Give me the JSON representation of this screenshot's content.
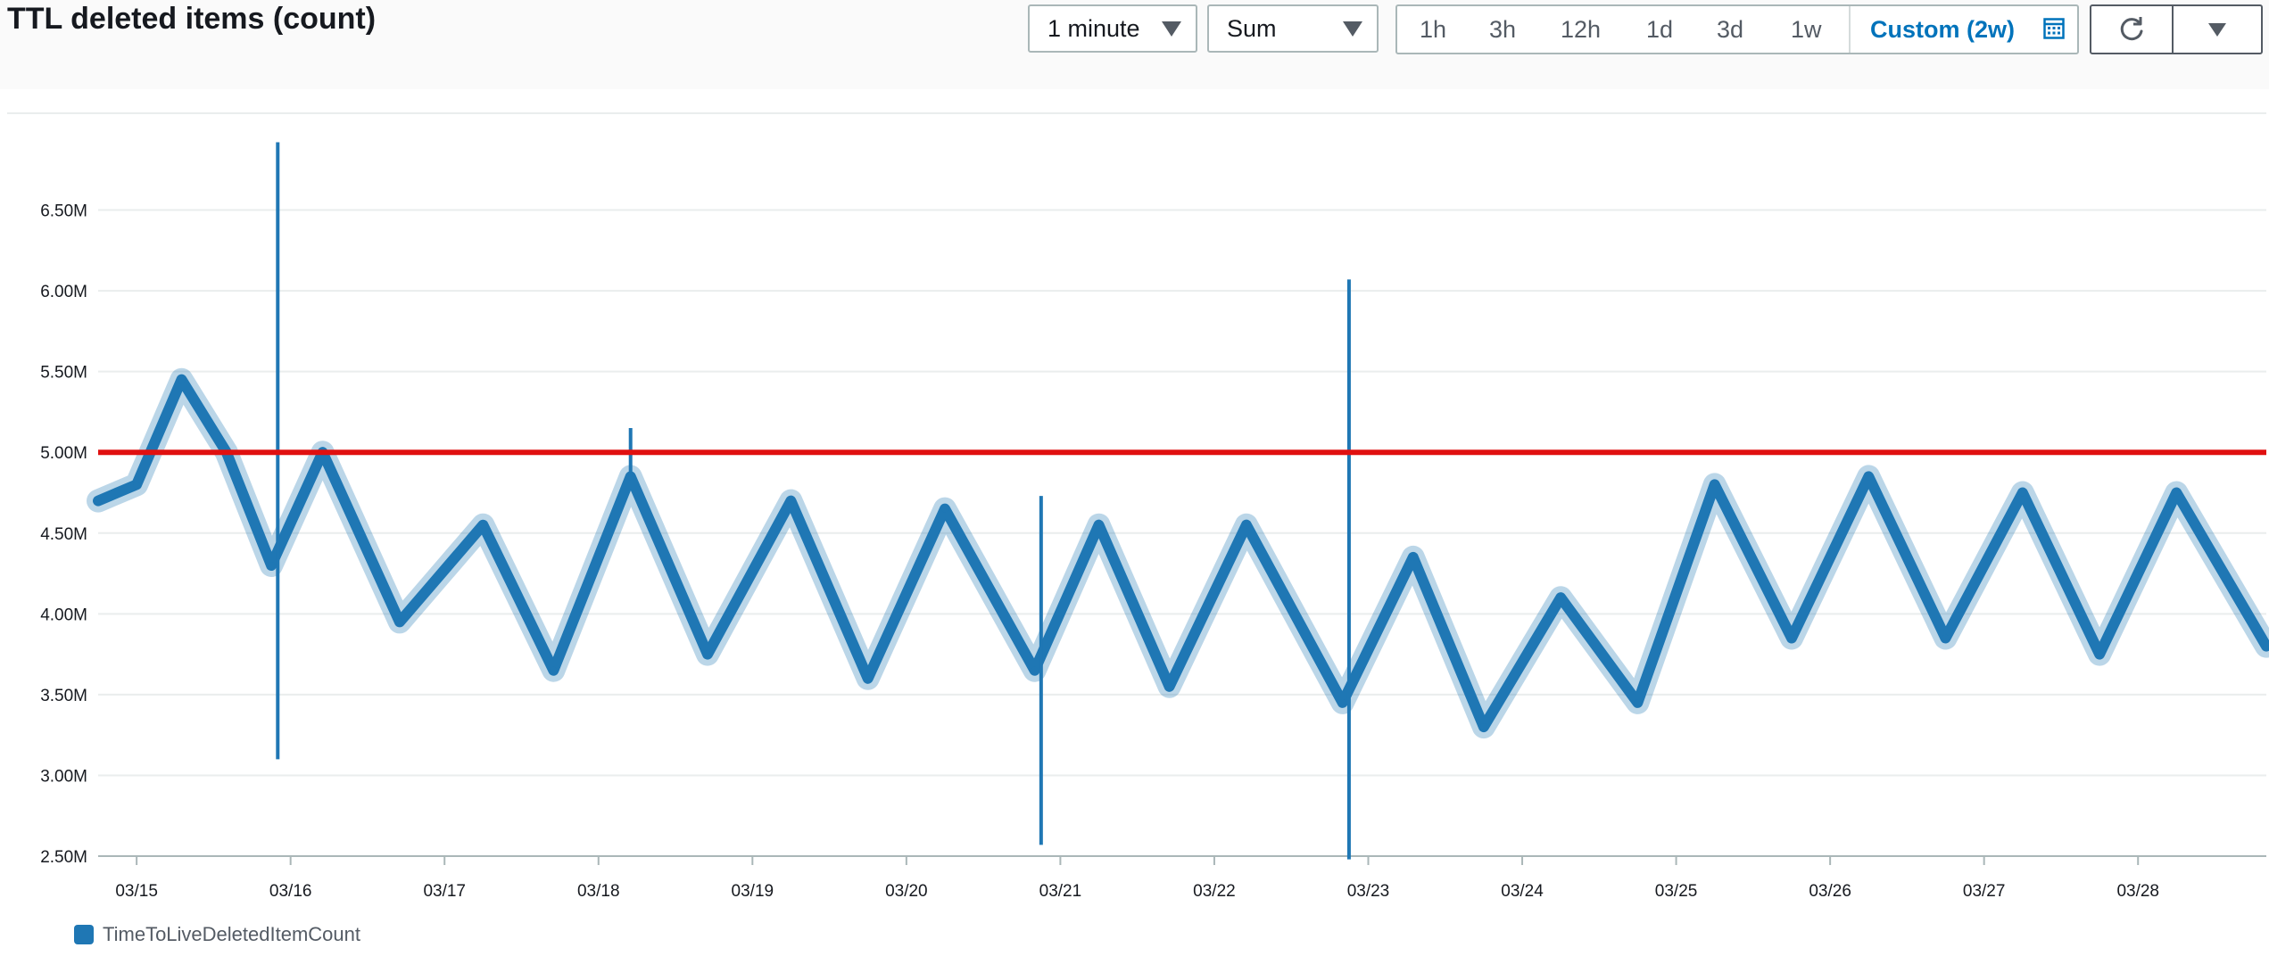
{
  "widget": {
    "title": "TTL deleted items (count)",
    "period": "1 minute",
    "statistic": "Sum",
    "ranges": [
      "1h",
      "3h",
      "12h",
      "1d",
      "3d",
      "1w"
    ],
    "custom_range": "Custom (2w)",
    "icons": [
      "caret-down-icon",
      "calendar-icon",
      "refresh-icon"
    ]
  },
  "colors": {
    "series": "#1f77b4",
    "threshold": "#e01010",
    "accent": "#0073bb"
  },
  "chart_data": {
    "type": "line",
    "title": "TTL deleted items (count)",
    "xlabel": "",
    "ylabel": "",
    "ylim": [
      2500000,
      7000000
    ],
    "y_ticks": [
      {
        "label": "6.50M",
        "value": 6500000
      },
      {
        "label": "6.00M",
        "value": 6000000
      },
      {
        "label": "5.50M",
        "value": 5500000
      },
      {
        "label": "5.00M",
        "value": 5000000
      },
      {
        "label": "4.50M",
        "value": 4500000
      },
      {
        "label": "4.00M",
        "value": 4000000
      },
      {
        "label": "3.50M",
        "value": 3500000
      },
      {
        "label": "3.00M",
        "value": 3000000
      },
      {
        "label": "2.50M",
        "value": 2500000
      }
    ],
    "xlim": [
      "2022-03-14T18:00",
      "2022-03-28T20:00"
    ],
    "x_ticks": [
      {
        "label": "03/15",
        "date": "2022-03-15T00:00"
      },
      {
        "label": "03/16",
        "date": "2022-03-16T00:00"
      },
      {
        "label": "03/17",
        "date": "2022-03-17T00:00"
      },
      {
        "label": "03/18",
        "date": "2022-03-18T00:00"
      },
      {
        "label": "03/19",
        "date": "2022-03-19T00:00"
      },
      {
        "label": "03/20",
        "date": "2022-03-20T00:00"
      },
      {
        "label": "03/21",
        "date": "2022-03-21T00:00"
      },
      {
        "label": "03/22",
        "date": "2022-03-22T00:00"
      },
      {
        "label": "03/23",
        "date": "2022-03-23T00:00"
      },
      {
        "label": "03/24",
        "date": "2022-03-24T00:00"
      },
      {
        "label": "03/25",
        "date": "2022-03-25T00:00"
      },
      {
        "label": "03/26",
        "date": "2022-03-26T00:00"
      },
      {
        "label": "03/27",
        "date": "2022-03-27T00:00"
      },
      {
        "label": "03/28",
        "date": "2022-03-28T00:00"
      }
    ],
    "legend_position": "bottom-left",
    "grid": true,
    "series": [
      {
        "name": "TimeToLiveDeletedItemCount",
        "points": [
          {
            "x": "2022-03-14T18:00",
            "y": 4700000
          },
          {
            "x": "2022-03-15T00:00",
            "y": 4800000
          },
          {
            "x": "2022-03-15T07:00",
            "y": 5450000
          },
          {
            "x": "2022-03-15T14:00",
            "y": 5000000
          },
          {
            "x": "2022-03-15T21:00",
            "y": 4300000
          },
          {
            "x": "2022-03-16T05:00",
            "y": 5000000
          },
          {
            "x": "2022-03-16T17:00",
            "y": 3950000
          },
          {
            "x": "2022-03-17T06:00",
            "y": 4550000
          },
          {
            "x": "2022-03-17T17:00",
            "y": 3650000
          },
          {
            "x": "2022-03-18T05:00",
            "y": 4850000
          },
          {
            "x": "2022-03-18T17:00",
            "y": 3750000
          },
          {
            "x": "2022-03-19T06:00",
            "y": 4700000
          },
          {
            "x": "2022-03-19T18:00",
            "y": 3600000
          },
          {
            "x": "2022-03-20T06:00",
            "y": 4650000
          },
          {
            "x": "2022-03-20T20:00",
            "y": 3650000
          },
          {
            "x": "2022-03-21T06:00",
            "y": 4550000
          },
          {
            "x": "2022-03-21T17:00",
            "y": 3550000
          },
          {
            "x": "2022-03-22T05:00",
            "y": 4550000
          },
          {
            "x": "2022-03-22T20:00",
            "y": 3450000
          },
          {
            "x": "2022-03-23T07:00",
            "y": 4350000
          },
          {
            "x": "2022-03-23T18:00",
            "y": 3300000
          },
          {
            "x": "2022-03-24T06:00",
            "y": 4100000
          },
          {
            "x": "2022-03-24T18:00",
            "y": 3450000
          },
          {
            "x": "2022-03-25T06:00",
            "y": 4800000
          },
          {
            "x": "2022-03-25T18:00",
            "y": 3850000
          },
          {
            "x": "2022-03-26T06:00",
            "y": 4850000
          },
          {
            "x": "2022-03-26T18:00",
            "y": 3850000
          },
          {
            "x": "2022-03-27T06:00",
            "y": 4750000
          },
          {
            "x": "2022-03-27T18:00",
            "y": 3750000
          },
          {
            "x": "2022-03-28T06:00",
            "y": 4750000
          },
          {
            "x": "2022-03-28T20:00",
            "y": 3800000
          }
        ],
        "spikes": [
          {
            "x": "2022-03-15T22:00",
            "low": 3100000,
            "high": 6920000
          },
          {
            "x": "2022-03-18T05:00",
            "low": 4850000,
            "high": 5150000
          },
          {
            "x": "2022-03-20T21:00",
            "low": 2570000,
            "high": 4730000
          },
          {
            "x": "2022-03-22T21:00",
            "low": 2480000,
            "high": 6070000
          }
        ]
      }
    ],
    "annotations": [
      {
        "type": "horizontal-line",
        "y": 5000000
      }
    ]
  }
}
